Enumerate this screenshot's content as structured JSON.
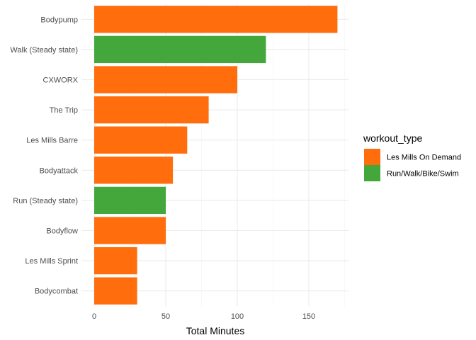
{
  "chart_data": {
    "type": "bar",
    "orientation": "horizontal",
    "title": "",
    "xlabel": "Total Minutes",
    "ylabel": "",
    "xlim": [
      0,
      178
    ],
    "xticks": [
      0,
      50,
      100,
      150
    ],
    "grid": true,
    "legend_placement": "right",
    "legend_title": "workout_type",
    "legend": [
      {
        "name": "Les Mills On Demand",
        "color": "#FF6D0C"
      },
      {
        "name": "Run/Walk/Bike/Swim",
        "color": "#44A73B"
      }
    ],
    "categories": [
      "Bodypump",
      "Walk (Steady state)",
      "CXWORX",
      "The Trip",
      "Les Mills Barre",
      "Bodyattack",
      "Run (Steady state)",
      "Bodyflow",
      "Les Mills Sprint",
      "Bodycombat"
    ],
    "values": [
      170,
      120,
      100,
      80,
      65,
      55,
      50,
      50,
      30,
      30
    ],
    "types": [
      "Les Mills On Demand",
      "Run/Walk/Bike/Swim",
      "Les Mills On Demand",
      "Les Mills On Demand",
      "Les Mills On Demand",
      "Les Mills On Demand",
      "Run/Walk/Bike/Swim",
      "Les Mills On Demand",
      "Les Mills On Demand",
      "Les Mills On Demand"
    ]
  }
}
